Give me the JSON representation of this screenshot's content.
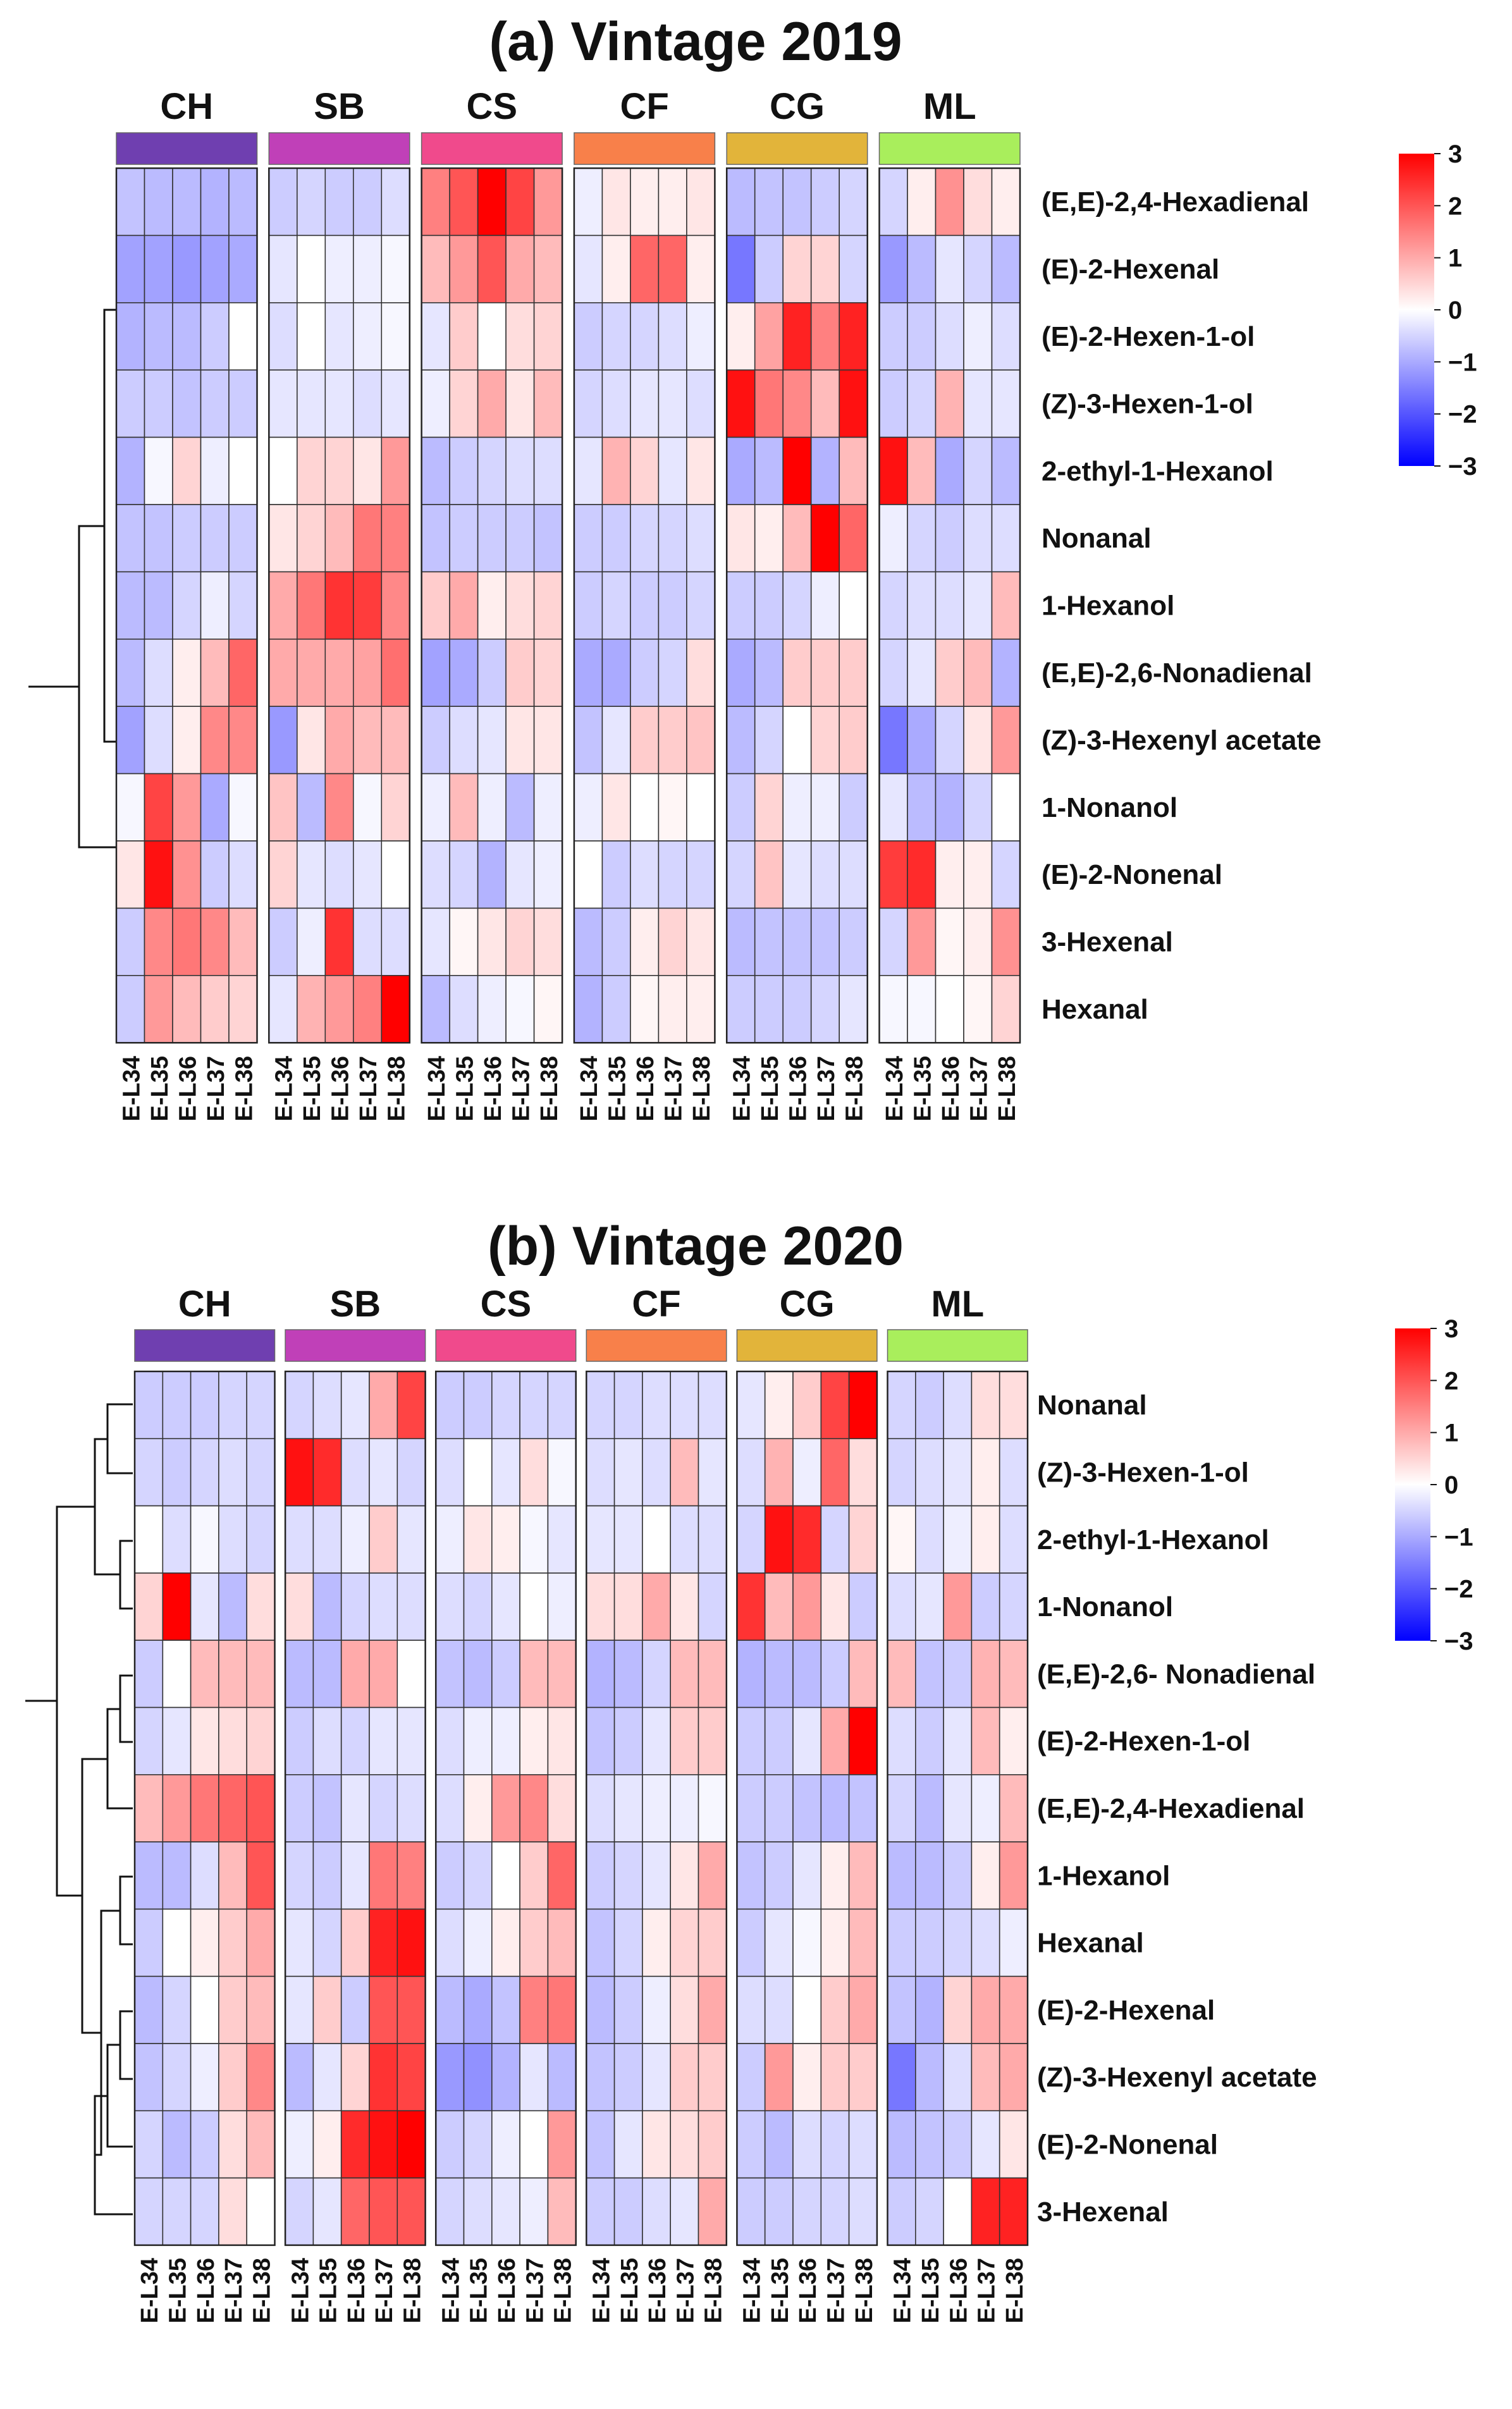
{
  "chart_data": [
    {
      "type": "heatmap",
      "title": "(a) Vintage 2019",
      "groups": [
        {
          "name": "CH",
          "color": "#6f3fb0"
        },
        {
          "name": "SB",
          "color": "#c040b8"
        },
        {
          "name": "CS",
          "color": "#f04a8c"
        },
        {
          "name": "CF",
          "color": "#f8804a"
        },
        {
          "name": "CG",
          "color": "#e2b43a"
        },
        {
          "name": "ML",
          "color": "#a9ee5c"
        }
      ],
      "samples": [
        "E-L34",
        "E-L35",
        "E-L36",
        "E-L37",
        "E-L38"
      ],
      "rows": [
        "(E,E)-2,4-Hexadienal",
        "(E)-2-Hexenal",
        "(E)-2-Hexen-1-ol",
        "(Z)-3-Hexen-1-ol",
        "2-ethyl-1-Hexanol",
        "Nonanal",
        "1-Hexanol",
        "(E,E)-2,6-Nonadienal",
        "(Z)-3-Hexenyl acetate",
        "1-Nonanol",
        "(E)-2-Nonenal",
        "3-Hexenal",
        "Hexanal"
      ],
      "values": [
        [
          -0.7,
          -0.8,
          -0.8,
          -0.9,
          -0.8,
          -0.6,
          -0.5,
          -0.6,
          -0.6,
          -0.4,
          1.5,
          2.0,
          3.0,
          2.2,
          1.2,
          -0.2,
          0.3,
          0.2,
          0.2,
          0.3,
          -0.8,
          -0.7,
          -0.7,
          -0.6,
          -0.5,
          -0.5,
          0.2,
          1.3,
          0.4,
          0.2
        ],
        [
          -1.1,
          -1.1,
          -1.2,
          -1.1,
          -1.0,
          -0.3,
          0.0,
          -0.2,
          -0.2,
          -0.1,
          0.8,
          1.2,
          2.0,
          1.0,
          0.8,
          -0.3,
          0.2,
          1.8,
          1.8,
          0.2,
          -1.6,
          -0.6,
          0.5,
          0.5,
          -0.5,
          -1.2,
          -0.8,
          -0.3,
          -0.5,
          -0.8
        ],
        [
          -0.9,
          -0.8,
          -0.8,
          -0.6,
          0.0,
          -0.4,
          0.0,
          -0.3,
          -0.2,
          -0.1,
          -0.3,
          0.6,
          0.0,
          0.4,
          0.5,
          -0.6,
          -0.5,
          -0.5,
          -0.4,
          -0.2,
          0.2,
          1.1,
          2.6,
          1.5,
          2.6,
          -0.6,
          -0.6,
          -0.4,
          -0.2,
          -0.4
        ],
        [
          -0.6,
          -0.6,
          -0.7,
          -0.6,
          -0.6,
          -0.3,
          -0.3,
          -0.3,
          -0.4,
          -0.3,
          -0.2,
          0.5,
          1.0,
          0.3,
          0.8,
          -0.5,
          -0.4,
          -0.3,
          -0.3,
          -0.4,
          2.8,
          1.6,
          1.4,
          0.8,
          2.8,
          -0.6,
          -0.5,
          0.9,
          -0.3,
          -0.3
        ],
        [
          -0.9,
          -0.1,
          0.5,
          -0.2,
          0.0,
          0.0,
          0.5,
          0.5,
          0.3,
          1.2,
          -0.8,
          -0.6,
          -0.5,
          -0.4,
          -0.4,
          -0.3,
          0.9,
          0.5,
          -0.3,
          0.3,
          -1.0,
          -0.8,
          3.0,
          -0.9,
          0.8,
          2.8,
          0.8,
          -1.0,
          -0.5,
          -0.8
        ],
        [
          -0.7,
          -0.7,
          -0.6,
          -0.6,
          -0.6,
          0.3,
          0.5,
          0.8,
          1.6,
          1.5,
          -0.7,
          -0.6,
          -0.6,
          -0.6,
          -0.7,
          -0.6,
          -0.6,
          -0.5,
          -0.5,
          -0.4,
          0.3,
          0.2,
          0.8,
          3.0,
          1.8,
          -0.2,
          -0.5,
          -0.6,
          -0.4,
          -0.4
        ],
        [
          -0.8,
          -0.8,
          -0.5,
          -0.2,
          -0.5,
          1.0,
          1.6,
          2.4,
          2.3,
          1.4,
          0.6,
          1.0,
          0.2,
          0.4,
          0.5,
          -0.6,
          -0.5,
          -0.6,
          -0.6,
          -0.5,
          -0.6,
          -0.6,
          -0.5,
          -0.2,
          0.0,
          -0.5,
          -0.4,
          -0.4,
          -0.3,
          0.8
        ],
        [
          -0.8,
          -0.4,
          0.2,
          0.8,
          1.8,
          1.0,
          1.0,
          1.0,
          1.1,
          1.7,
          -1.1,
          -1.0,
          -0.6,
          0.6,
          0.5,
          -1.0,
          -1.0,
          -0.6,
          -0.5,
          0.4,
          -1.0,
          -0.8,
          0.6,
          0.6,
          0.6,
          -0.5,
          -0.3,
          0.6,
          0.8,
          -0.9
        ],
        [
          -1.1,
          -0.4,
          0.2,
          1.4,
          1.4,
          -1.2,
          0.3,
          1.0,
          0.8,
          0.8,
          -0.6,
          -0.4,
          -0.3,
          0.3,
          0.3,
          -0.7,
          -0.3,
          0.6,
          0.6,
          0.7,
          -0.8,
          -0.5,
          0.0,
          0.5,
          0.6,
          -1.6,
          -1.0,
          -0.5,
          0.3,
          1.2
        ],
        [
          -0.1,
          2.2,
          1.2,
          -1.0,
          -0.1,
          0.7,
          -0.8,
          1.4,
          -0.1,
          0.5,
          -0.2,
          0.8,
          -0.2,
          -0.8,
          -0.2,
          -0.2,
          0.3,
          0.0,
          0.1,
          0.0,
          -0.6,
          0.5,
          -0.2,
          -0.2,
          -0.6,
          -0.3,
          -0.8,
          -0.9,
          -0.5,
          0.0
        ],
        [
          0.3,
          2.8,
          1.3,
          -0.6,
          -0.4,
          0.5,
          -0.3,
          -0.4,
          -0.3,
          0.0,
          -0.4,
          -0.5,
          -0.9,
          -0.3,
          -0.2,
          0.0,
          -0.6,
          -0.4,
          -0.5,
          -0.5,
          -0.5,
          0.7,
          -0.3,
          -0.4,
          -0.4,
          2.3,
          2.5,
          0.2,
          0.2,
          -0.5
        ],
        [
          -0.6,
          1.4,
          1.6,
          1.4,
          0.8,
          -0.6,
          -0.2,
          2.4,
          -0.4,
          -0.4,
          -0.3,
          0.1,
          0.3,
          0.5,
          0.4,
          -0.8,
          -0.6,
          0.2,
          0.5,
          0.3,
          -0.8,
          -0.7,
          -0.7,
          -0.7,
          -0.6,
          -0.5,
          1.2,
          0.1,
          0.2,
          1.3
        ],
        [
          -0.6,
          1.2,
          0.8,
          0.6,
          0.5,
          -0.3,
          0.9,
          1.2,
          1.5,
          3.0,
          -0.8,
          -0.4,
          -0.2,
          -0.1,
          0.1,
          -0.9,
          -0.6,
          0.1,
          0.2,
          0.2,
          -0.6,
          -0.6,
          -0.6,
          -0.5,
          -0.3,
          -0.1,
          -0.1,
          0.0,
          0.1,
          0.5
        ]
      ],
      "colorbar": {
        "min": -3,
        "max": 3,
        "ticks": [
          "3",
          "2",
          "1",
          "0",
          "−1",
          "−2",
          "−3"
        ],
        "colors": [
          "#0000ff",
          "#ffffff",
          "#ff0000"
        ]
      }
    },
    {
      "type": "heatmap",
      "title": "(b) Vintage 2020",
      "groups": [
        {
          "name": "CH",
          "color": "#6f3fb0"
        },
        {
          "name": "SB",
          "color": "#c040b8"
        },
        {
          "name": "CS",
          "color": "#f04a8c"
        },
        {
          "name": "CF",
          "color": "#f8804a"
        },
        {
          "name": "CG",
          "color": "#e2b43a"
        },
        {
          "name": "ML",
          "color": "#a9ee5c"
        }
      ],
      "samples": [
        "E-L34",
        "E-L35",
        "E-L36",
        "E-L37",
        "E-L38"
      ],
      "rows": [
        "Nonanal",
        "(Z)-3-Hexen-1-ol",
        "2-ethyl-1-Hexanol",
        "1-Nonanol",
        "(E,E)-2,6- Nonadienal",
        "(E)-2-Hexen-1-ol",
        "(E,E)-2,4-Hexadienal",
        "1-Hexanol",
        "Hexanal",
        "(E)-2-Hexenal",
        "(Z)-3-Hexenyl acetate",
        "(E)-2-Nonenal",
        "3-Hexenal"
      ],
      "values": [
        [
          -0.6,
          -0.6,
          -0.6,
          -0.5,
          -0.5,
          -0.5,
          -0.4,
          -0.3,
          1.0,
          2.2,
          -0.6,
          -0.6,
          -0.5,
          -0.5,
          -0.5,
          -0.5,
          -0.5,
          -0.4,
          -0.4,
          -0.4,
          -0.3,
          0.2,
          0.6,
          2.2,
          3.0,
          -0.5,
          -0.6,
          -0.4,
          0.4,
          0.4
        ],
        [
          -0.5,
          -0.6,
          -0.5,
          -0.4,
          -0.5,
          2.8,
          2.5,
          -0.4,
          -0.3,
          -0.5,
          -0.4,
          0.0,
          -0.3,
          0.4,
          -0.1,
          -0.4,
          -0.3,
          -0.4,
          0.8,
          -0.3,
          -0.4,
          0.9,
          -0.2,
          1.8,
          0.4,
          -0.5,
          -0.4,
          -0.3,
          0.2,
          -0.4
        ],
        [
          0.0,
          -0.4,
          -0.1,
          -0.4,
          -0.5,
          -0.4,
          -0.4,
          -0.2,
          0.6,
          -0.3,
          -0.2,
          0.3,
          0.2,
          -0.1,
          -0.3,
          -0.3,
          -0.3,
          0.0,
          -0.4,
          -0.4,
          -0.5,
          2.8,
          2.5,
          -0.5,
          0.5,
          0.1,
          -0.4,
          -0.2,
          0.2,
          -0.4
        ],
        [
          0.5,
          3.0,
          -0.3,
          -0.8,
          0.4,
          0.4,
          -0.8,
          -0.5,
          -0.4,
          -0.4,
          -0.4,
          -0.5,
          -0.3,
          0.0,
          -0.2,
          0.4,
          0.4,
          1.0,
          0.3,
          -0.5,
          2.4,
          0.8,
          1.2,
          0.3,
          -0.6,
          -0.4,
          -0.3,
          1.2,
          -0.6,
          -0.5
        ],
        [
          -0.6,
          0.0,
          0.8,
          0.8,
          0.8,
          -0.8,
          -0.8,
          1.0,
          1.0,
          0.0,
          -0.7,
          -0.8,
          -0.6,
          0.8,
          0.8,
          -0.9,
          -0.8,
          -0.5,
          0.8,
          0.8,
          -0.9,
          -0.8,
          -0.8,
          -0.6,
          0.8,
          0.8,
          -0.7,
          -0.6,
          0.9,
          0.8
        ],
        [
          -0.5,
          -0.3,
          0.3,
          0.4,
          0.5,
          -0.6,
          -0.4,
          -0.5,
          -0.3,
          -0.3,
          -0.4,
          -0.2,
          -0.2,
          0.2,
          0.3,
          -0.7,
          -0.6,
          -0.3,
          0.6,
          0.6,
          -0.6,
          -0.6,
          -0.3,
          1.0,
          3.0,
          -0.4,
          -0.6,
          -0.3,
          0.8,
          0.2
        ],
        [
          0.8,
          1.2,
          1.6,
          1.8,
          2.0,
          -0.6,
          -0.7,
          -0.3,
          -0.5,
          -0.4,
          -0.4,
          0.2,
          1.2,
          1.4,
          0.4,
          -0.4,
          -0.3,
          -0.2,
          -0.2,
          -0.1,
          -0.6,
          -0.6,
          -0.7,
          -0.8,
          -0.7,
          -0.5,
          -0.8,
          -0.3,
          -0.2,
          0.8
        ],
        [
          -0.8,
          -0.8,
          -0.4,
          0.8,
          2.0,
          -0.5,
          -0.6,
          -0.3,
          1.6,
          1.5,
          -0.6,
          -0.5,
          0.0,
          0.6,
          1.8,
          -0.6,
          -0.5,
          -0.3,
          0.3,
          1.0,
          -0.7,
          -0.6,
          -0.3,
          0.2,
          0.8,
          -0.8,
          -0.8,
          -0.6,
          0.2,
          1.2
        ],
        [
          -0.6,
          0.0,
          0.2,
          0.6,
          1.0,
          -0.3,
          -0.5,
          0.6,
          2.6,
          2.8,
          -0.4,
          -0.2,
          0.2,
          0.6,
          0.8,
          -0.7,
          -0.5,
          0.2,
          0.5,
          0.6,
          -0.6,
          -0.3,
          -0.1,
          0.2,
          0.8,
          -0.6,
          -0.6,
          -0.5,
          -0.4,
          -0.2
        ],
        [
          -0.8,
          -0.5,
          0.0,
          0.6,
          0.8,
          -0.3,
          0.6,
          -0.6,
          2.0,
          2.0,
          -0.8,
          -1.0,
          -0.7,
          1.5,
          1.6,
          -0.8,
          -0.6,
          -0.2,
          0.4,
          1.0,
          -0.4,
          -0.4,
          0.0,
          0.6,
          1.0,
          -0.7,
          -0.9,
          0.5,
          1.0,
          1.0
        ],
        [
          -0.7,
          -0.5,
          -0.2,
          0.6,
          1.4,
          -0.8,
          -0.3,
          0.5,
          2.4,
          2.2,
          -1.2,
          -1.3,
          -0.9,
          -0.3,
          -0.8,
          -0.7,
          -0.6,
          -0.3,
          0.6,
          0.6,
          -0.6,
          1.2,
          0.2,
          0.6,
          0.6,
          -1.6,
          -0.8,
          -0.4,
          0.8,
          1.0
        ],
        [
          -0.5,
          -0.8,
          -0.6,
          0.4,
          0.8,
          -0.2,
          0.2,
          2.5,
          2.8,
          3.0,
          -0.6,
          -0.5,
          -0.2,
          0.0,
          1.2,
          -0.7,
          -0.3,
          0.3,
          0.4,
          0.6,
          -0.6,
          -0.8,
          -0.4,
          -0.5,
          -0.4,
          -0.8,
          -0.7,
          -0.6,
          -0.3,
          0.3
        ],
        [
          -0.5,
          -0.5,
          -0.5,
          0.4,
          0.0,
          -0.5,
          -0.3,
          1.8,
          2.0,
          2.0,
          -0.5,
          -0.4,
          -0.3,
          -0.2,
          0.8,
          -0.6,
          -0.6,
          -0.4,
          -0.3,
          1.0,
          -0.6,
          -0.6,
          -0.5,
          -0.5,
          -0.4,
          -0.6,
          -0.5,
          0.0,
          2.6,
          2.6
        ]
      ],
      "colorbar": {
        "min": -3,
        "max": 3,
        "ticks": [
          "3",
          "2",
          "1",
          "0",
          "−1",
          "−2",
          "−3"
        ],
        "colors": [
          "#0000ff",
          "#ffffff",
          "#ff0000"
        ]
      }
    }
  ]
}
